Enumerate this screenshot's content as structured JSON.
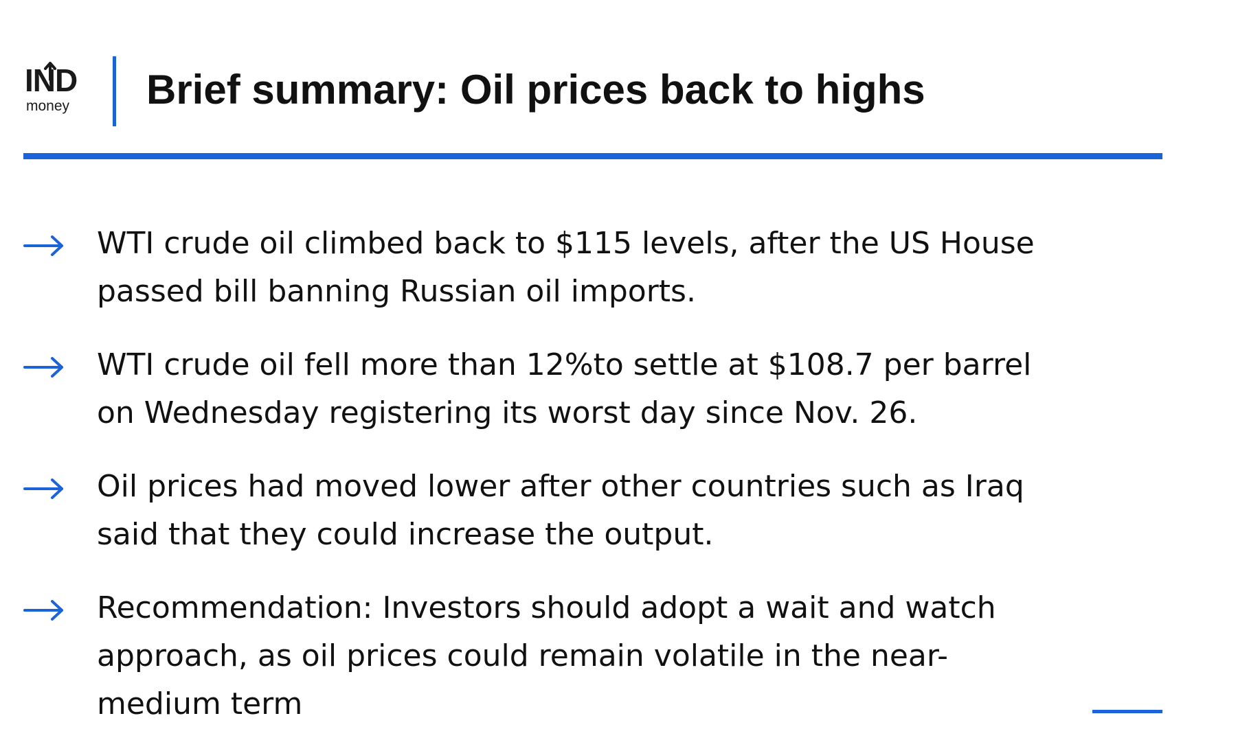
{
  "brand": {
    "logo_text": "IND",
    "logo_subtext": "money",
    "accent_color": "#1a63d8"
  },
  "header": {
    "title": "Brief summary: Oil prices back to highs"
  },
  "bullets": [
    {
      "icon": "right-arrow-icon",
      "lines": [
        "WTI crude oil climbed back to $115 levels, after the US House",
        "passed bill banning Russian oil imports."
      ]
    },
    {
      "icon": "right-arrow-icon",
      "lines": [
        "WTI crude oil fell more than 12%to settle at $108.7 per barrel",
        "on Wednesday registering its worst day since Nov. 26."
      ]
    },
    {
      "icon": "right-arrow-icon",
      "lines": [
        "Oil prices had moved lower after other countries such as Iraq",
        "said that they could increase the output."
      ]
    },
    {
      "icon": "right-arrow-icon",
      "lines": [
        "Recommendation: Investors should adopt a wait and watch",
        "approach, as oil prices could remain volatile in the near-",
        "medium term"
      ]
    }
  ]
}
